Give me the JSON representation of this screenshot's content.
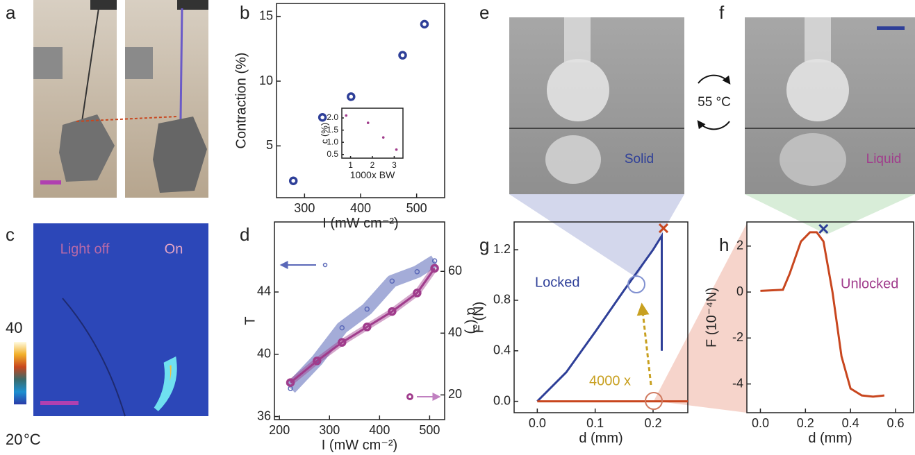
{
  "panel_labels": [
    "a",
    "b",
    "c",
    "d",
    "e",
    "f",
    "g",
    "h"
  ],
  "panel_c": {
    "light_off": "Light off",
    "on": "On",
    "colorbar_max": 40,
    "colorbar_min": 20,
    "colorbar_unit": "°C"
  },
  "panel_e": {
    "state": "Solid"
  },
  "panel_f": {
    "state": "Liquid"
  },
  "transition": "55 °C",
  "chart_data": [
    {
      "type": "scatter",
      "x_label": "I (mW cm⁻²)",
      "y_label": "Contraction (%)",
      "xlim": [
        250,
        550
      ],
      "ylim": [
        1,
        16
      ],
      "xticks": [
        300,
        400,
        500
      ],
      "yticks": [
        5,
        10,
        15
      ],
      "series": [
        {
          "color": "#2e3f98",
          "marker": "ring",
          "line": false,
          "x": [
            280,
            332,
            383,
            475,
            514
          ],
          "values": [
            2.3,
            7.2,
            8.8,
            12.0,
            14.4
          ]
        }
      ]
    },
    {
      "type": "scatter",
      "x_label": "1000x BW",
      "y_label": "c (%)",
      "xlim": [
        0.6,
        3.4
      ],
      "ylim": [
        0.35,
        2.4
      ],
      "xticks": [
        1,
        2,
        3
      ],
      "yticks": [
        0.5,
        {
          "value": 1.0,
          "label": "1.0"
        },
        1.5,
        {
          "value": 2.0,
          "label": "2.0"
        }
      ],
      "series": [
        {
          "color": "#a03c8c",
          "marker": "dot",
          "line": false,
          "x": [
            0.8,
            1.8,
            2.5,
            3.1
          ],
          "values": [
            2.1,
            1.8,
            1.2,
            0.7
          ]
        }
      ]
    },
    {
      "type": "line",
      "x_label": "I (mW cm⁻²)",
      "y_label": "T",
      "y2_label": "α (°)",
      "xlim": [
        190,
        530
      ],
      "ylim": [
        35.8,
        48.5
      ],
      "y2lim": [
        12,
        76
      ],
      "xticks": [
        200,
        300,
        400,
        500
      ],
      "yticks": [
        36,
        40,
        44
      ],
      "y2ticks": [
        20,
        40,
        60
      ],
      "series": [
        {
          "color": "#5a68b8",
          "marker": "small-ring",
          "line": false,
          "band": true,
          "axis": "y",
          "x": [
            222,
            275,
            325,
            375,
            425,
            475,
            510
          ],
          "values": [
            37.8,
            39.6,
            41.7,
            42.9,
            44.7,
            45.3,
            46.0
          ]
        },
        {
          "color": "#a03c8c",
          "marker": "ring",
          "line": true,
          "band": true,
          "axis": "y2",
          "x": [
            222,
            275,
            325,
            375,
            425,
            475,
            510
          ],
          "values": [
            24,
            31,
            37,
            42,
            47,
            53,
            61
          ]
        }
      ]
    },
    {
      "type": "line",
      "x_label": "d (mm)",
      "y_label": "F (N)",
      "annotations": [
        "Locked",
        "4000 x"
      ],
      "xlim": [
        -0.04,
        0.26
      ],
      "ylim": [
        -0.09,
        1.42
      ],
      "xticks": [
        {
          "value": 0.0,
          "label": "0.0"
        },
        0.1,
        0.2
      ],
      "yticks": [
        {
          "value": 0.0,
          "label": "0.0"
        },
        0.4,
        0.8,
        1.2
      ],
      "series": [
        {
          "color": "#2e3f98",
          "marker": "none",
          "line": true,
          "x": [
            0,
            0.05,
            0.1,
            0.15,
            0.2,
            0.215,
            0.215
          ],
          "values": [
            0,
            0.23,
            0.55,
            0.88,
            1.2,
            1.31,
            0.4
          ]
        },
        {
          "color": "#c8461e",
          "marker": "none",
          "line": true,
          "x": [
            0,
            0.26
          ],
          "values": [
            0,
            0
          ]
        },
        {
          "color": "#c8461e",
          "marker": "cross",
          "line": false,
          "x": [
            0.218
          ],
          "values": [
            1.37
          ]
        }
      ]
    },
    {
      "type": "line",
      "x_label": "d (mm)",
      "y_label": "F (10⁻⁴N)",
      "annotations": [
        "Unlocked"
      ],
      "xlim": [
        -0.06,
        0.68
      ],
      "ylim": [
        -5.25,
        3.05
      ],
      "xticks": [
        {
          "value": 0.0,
          "label": "0.0"
        },
        0.2,
        0.4,
        0.6
      ],
      "yticks": [
        -4,
        -2,
        0,
        2
      ],
      "series": [
        {
          "color": "#c8461e",
          "marker": "none",
          "line": true,
          "x": [
            0,
            0.1,
            0.13,
            0.18,
            0.22,
            0.25,
            0.28,
            0.32,
            0.36,
            0.4,
            0.45,
            0.5,
            0.55
          ],
          "values": [
            0.05,
            0.1,
            0.8,
            2.2,
            2.6,
            2.6,
            2.2,
            0,
            -2.8,
            -4.2,
            -4.5,
            -4.55,
            -4.5
          ]
        },
        {
          "color": "#2e3f98",
          "marker": "cross",
          "line": false,
          "x": [
            0.28
          ],
          "values": [
            2.75
          ]
        }
      ]
    }
  ]
}
